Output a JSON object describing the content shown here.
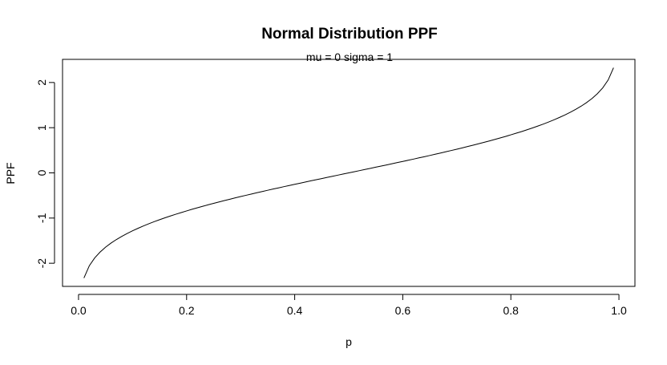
{
  "chart_data": {
    "type": "line",
    "title": "Normal Distribution PPF",
    "subtitle": "mu = 0  sigma = 1",
    "xlabel": "p",
    "ylabel": "PPF",
    "xlim": [
      -0.0296,
      1.0296
    ],
    "ylim": [
      -2.512,
      2.512
    ],
    "x_ticks": [
      0.0,
      0.2,
      0.4,
      0.6,
      0.8,
      1.0
    ],
    "x_tick_labels": [
      "0.0",
      "0.2",
      "0.4",
      "0.6",
      "0.8",
      "1.0"
    ],
    "y_ticks": [
      -2,
      -1,
      0,
      1,
      2
    ],
    "y_tick_labels": [
      "-2",
      "-1",
      "0",
      "1",
      "2"
    ],
    "grid": false,
    "series": [
      {
        "name": "PPF",
        "color": "#000000",
        "x": [
          0.01,
          0.02,
          0.03,
          0.04,
          0.05,
          0.06,
          0.07,
          0.08,
          0.09,
          0.1,
          0.11,
          0.12,
          0.13,
          0.14,
          0.15,
          0.16,
          0.17,
          0.18,
          0.19,
          0.2,
          0.21,
          0.22,
          0.23,
          0.24,
          0.25,
          0.26,
          0.27,
          0.28,
          0.29,
          0.3,
          0.31,
          0.32,
          0.33,
          0.34,
          0.35,
          0.36,
          0.37,
          0.38,
          0.39,
          0.4,
          0.41,
          0.42,
          0.43,
          0.44,
          0.45,
          0.46,
          0.47,
          0.48,
          0.49,
          0.5,
          0.51,
          0.52,
          0.53,
          0.54,
          0.55,
          0.56,
          0.57,
          0.58,
          0.59,
          0.6,
          0.61,
          0.62,
          0.63,
          0.64,
          0.65,
          0.66,
          0.67,
          0.68,
          0.69,
          0.7,
          0.71,
          0.72,
          0.73,
          0.74,
          0.75,
          0.76,
          0.77,
          0.78,
          0.79,
          0.8,
          0.81,
          0.82,
          0.83,
          0.84,
          0.85,
          0.86,
          0.87,
          0.88,
          0.89,
          0.9,
          0.91,
          0.92,
          0.93,
          0.94,
          0.95,
          0.96,
          0.97,
          0.98,
          0.99
        ],
        "y": [
          -2.326,
          -2.054,
          -1.881,
          -1.751,
          -1.645,
          -1.555,
          -1.476,
          -1.405,
          -1.341,
          -1.282,
          -1.227,
          -1.175,
          -1.126,
          -1.08,
          -1.036,
          -0.994,
          -0.954,
          -0.915,
          -0.878,
          -0.842,
          -0.806,
          -0.772,
          -0.739,
          -0.706,
          -0.674,
          -0.643,
          -0.613,
          -0.583,
          -0.553,
          -0.524,
          -0.496,
          -0.468,
          -0.44,
          -0.412,
          -0.385,
          -0.358,
          -0.332,
          -0.305,
          -0.279,
          -0.253,
          -0.228,
          -0.202,
          -0.176,
          -0.151,
          -0.126,
          -0.1,
          -0.075,
          -0.05,
          -0.025,
          0.0,
          0.025,
          0.05,
          0.075,
          0.1,
          0.126,
          0.151,
          0.176,
          0.202,
          0.228,
          0.253,
          0.279,
          0.305,
          0.332,
          0.358,
          0.385,
          0.412,
          0.44,
          0.468,
          0.496,
          0.524,
          0.553,
          0.583,
          0.613,
          0.643,
          0.674,
          0.706,
          0.739,
          0.772,
          0.806,
          0.842,
          0.878,
          0.915,
          0.954,
          0.994,
          1.036,
          1.08,
          1.126,
          1.175,
          1.227,
          1.282,
          1.341,
          1.405,
          1.476,
          1.555,
          1.645,
          1.751,
          1.881,
          2.054,
          2.326
        ]
      }
    ]
  }
}
